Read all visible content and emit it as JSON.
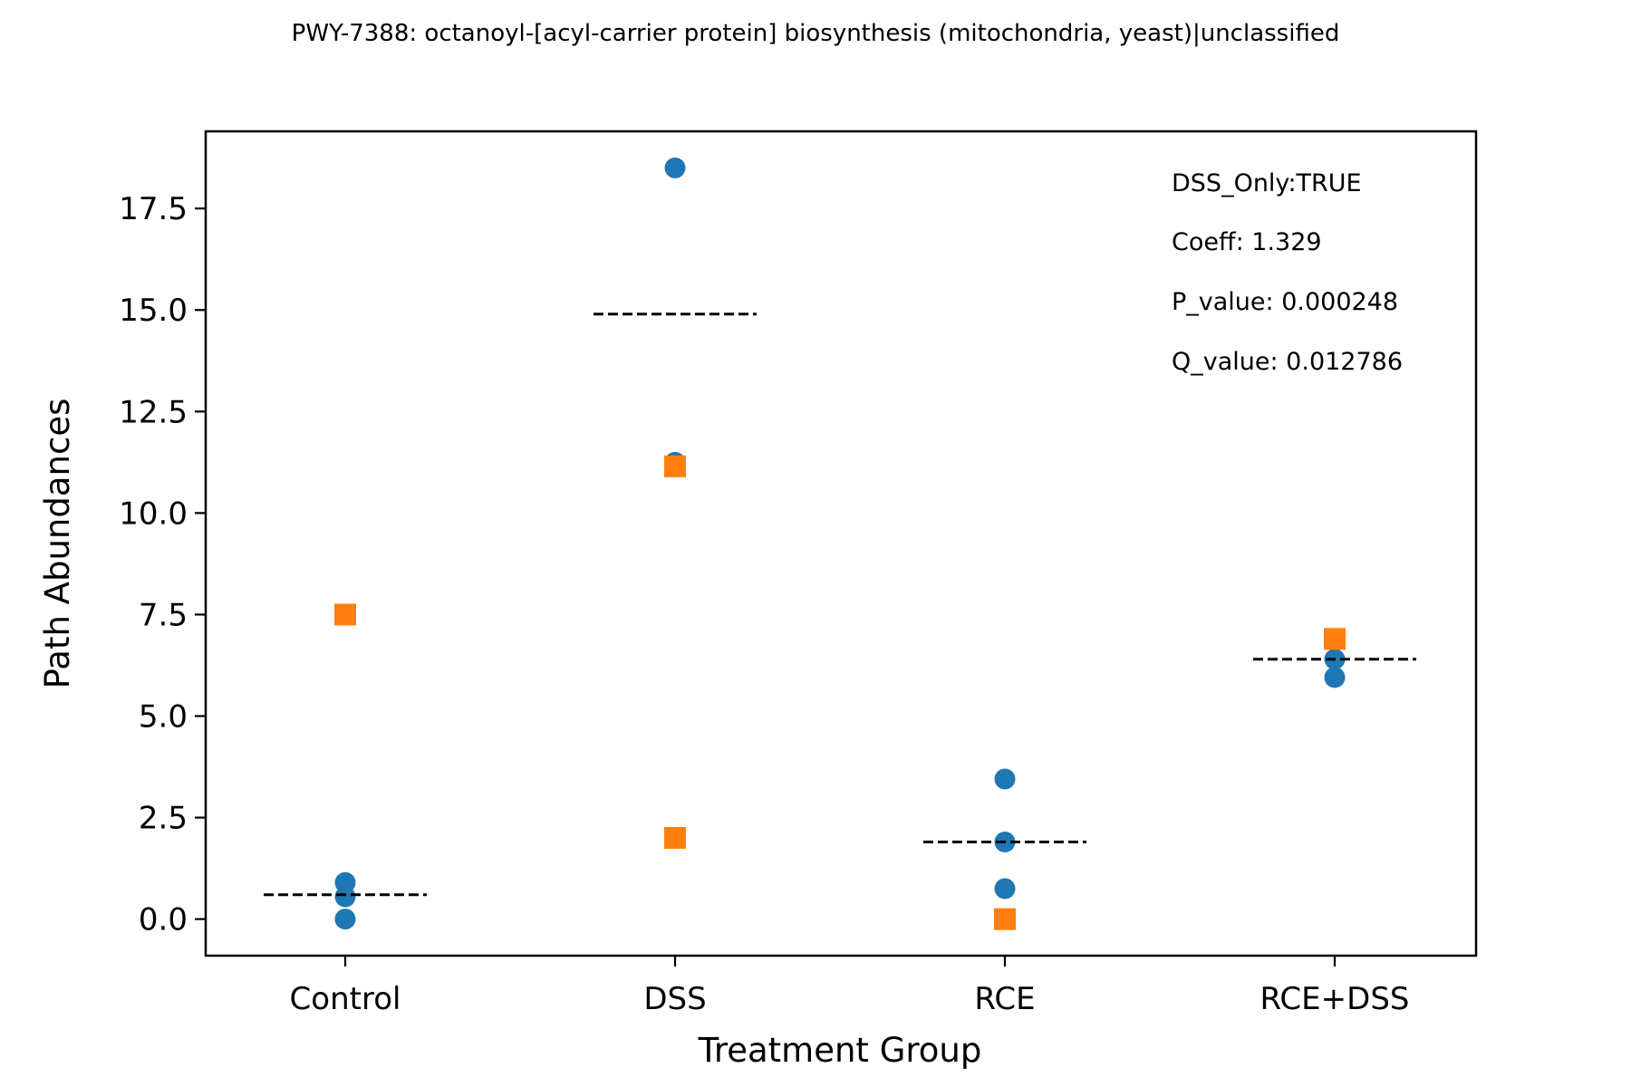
{
  "chart_data": {
    "type": "scatter",
    "title": "PWY-7388: octanoyl-[acyl-carrier protein] biosynthesis (mitochondria, yeast)|unclassified",
    "xlabel": "Treatment Group",
    "ylabel": "Path Abundances",
    "categories": [
      "Control",
      "DSS",
      "RCE",
      "RCE+DSS"
    ],
    "ylim": [
      -0.9,
      19.4
    ],
    "yticks": [
      "0.0",
      "2.5",
      "5.0",
      "7.5",
      "10.0",
      "12.5",
      "15.0",
      "17.5"
    ],
    "ytick_values": [
      0,
      2.5,
      5,
      7.5,
      10,
      12.5,
      15,
      17.5
    ],
    "grid": false,
    "series": [
      {
        "marker": "circle",
        "color": "#1f77b4",
        "points": [
          {
            "x": "Control",
            "y": 0.9
          },
          {
            "x": "Control",
            "y": 0.55
          },
          {
            "x": "Control",
            "y": 0.0
          },
          {
            "x": "DSS",
            "y": 18.5
          },
          {
            "x": "DSS",
            "y": 11.25
          },
          {
            "x": "RCE",
            "y": 3.45
          },
          {
            "x": "RCE",
            "y": 1.9
          },
          {
            "x": "RCE",
            "y": 0.75
          },
          {
            "x": "RCE+DSS",
            "y": 6.4
          },
          {
            "x": "RCE+DSS",
            "y": 5.95
          }
        ]
      },
      {
        "marker": "square",
        "color": "#ff7f0e",
        "points": [
          {
            "x": "Control",
            "y": 7.5
          },
          {
            "x": "DSS",
            "y": 11.15
          },
          {
            "x": "DSS",
            "y": 2.0
          },
          {
            "x": "RCE",
            "y": 0.0
          },
          {
            "x": "RCE+DSS",
            "y": 6.9
          }
        ]
      }
    ],
    "means": [
      {
        "x": "Control",
        "y": 0.6
      },
      {
        "x": "DSS",
        "y": 14.9
      },
      {
        "x": "RCE",
        "y": 1.9
      },
      {
        "x": "RCE+DSS",
        "y": 6.4
      }
    ],
    "mean_line_color": "#000000",
    "annotations": [
      "DSS_Only:TRUE",
      "Coeff: 1.329",
      "P_value: 0.000248",
      "Q_value: 0.012786"
    ]
  }
}
